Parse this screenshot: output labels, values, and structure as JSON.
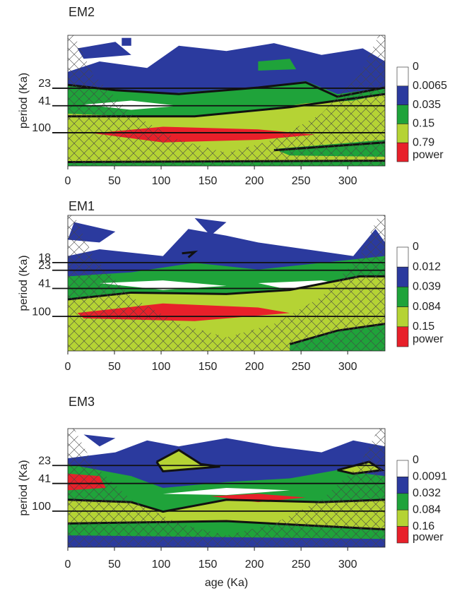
{
  "chart_data": [
    {
      "type": "contour",
      "title": "EM2",
      "title_color": "#00aeef",
      "y_label": "period (Ka)",
      "yscale": "log",
      "xlim": [
        0,
        340
      ],
      "xticks": [
        0,
        50,
        100,
        150,
        200,
        250,
        300
      ],
      "ylim": [
        4,
        300
      ],
      "yticks": [
        23,
        41,
        100
      ],
      "legend": {
        "levels": [
          0,
          0.0065,
          0.035,
          0.15,
          0.79
        ],
        "label": "power",
        "colors": [
          "#ffffff",
          "#2b3a9e",
          "#1fa33a",
          "#b5d334",
          "#e8202a"
        ]
      }
    },
    {
      "type": "contour",
      "title": "EM1",
      "title_color": "#2e3192",
      "y_label": "period (Ka)",
      "yscale": "log",
      "xlim": [
        0,
        340
      ],
      "xticks": [
        0,
        50,
        100,
        150,
        200,
        250,
        300
      ],
      "ylim": [
        4,
        300
      ],
      "yticks": [
        18,
        23,
        41,
        100
      ],
      "legend": {
        "levels": [
          0,
          0.012,
          0.039,
          0.084,
          0.15
        ],
        "label": "power",
        "colors": [
          "#ffffff",
          "#2b3a9e",
          "#1fa33a",
          "#b5d334",
          "#e8202a"
        ]
      }
    },
    {
      "type": "contour",
      "title": "EM3",
      "title_color": "#ed1c24",
      "y_label": "period (Ka)",
      "x_label": "age (Ka)",
      "yscale": "log",
      "xlim": [
        0,
        340
      ],
      "xticks": [
        0,
        50,
        100,
        150,
        200,
        250,
        300
      ],
      "ylim": [
        7,
        320
      ],
      "yticks": [
        23,
        41,
        100
      ],
      "legend": {
        "levels": [
          0,
          0.0091,
          0.032,
          0.084,
          0.16
        ],
        "label": "power",
        "colors": [
          "#ffffff",
          "#2b3a9e",
          "#1fa33a",
          "#b5d334",
          "#e8202a"
        ]
      }
    }
  ]
}
